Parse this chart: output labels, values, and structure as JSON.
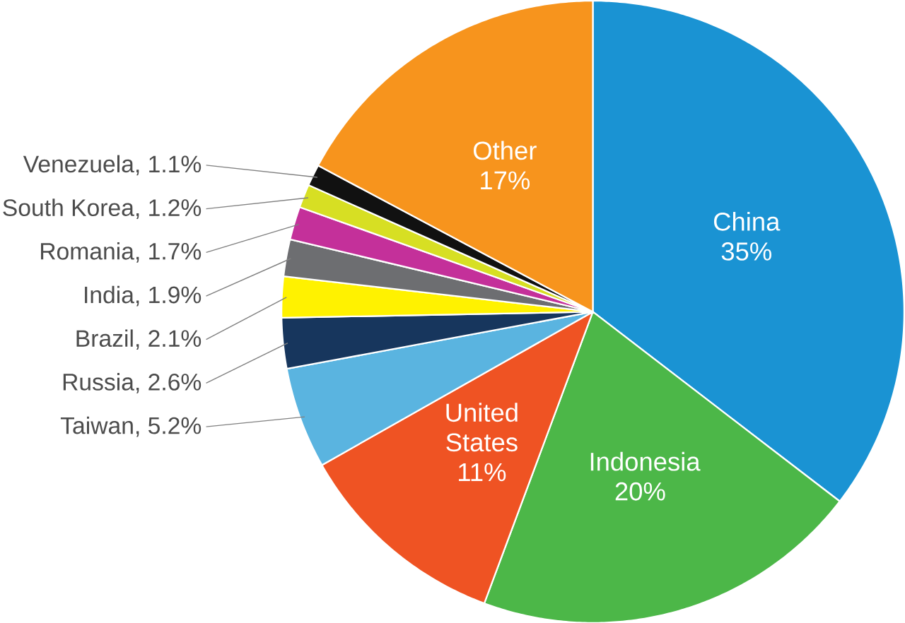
{
  "chart_data": {
    "type": "pie",
    "categories": [
      "China",
      "Indonesia",
      "United States",
      "Taiwan",
      "Russia",
      "Brazil",
      "India",
      "Romania",
      "South Korea",
      "Venezuela",
      "Other"
    ],
    "values": [
      35,
      20,
      11,
      5.2,
      2.6,
      2.1,
      1.9,
      1.7,
      1.2,
      1.1,
      17
    ],
    "colors": [
      "#1a93d3",
      "#4cb748",
      "#ef5323",
      "#5ab4e0",
      "#17365d",
      "#fff200",
      "#6d6e71",
      "#c4309a",
      "#d7df23",
      "#111111",
      "#f7941d"
    ],
    "value_labels": [
      "35%",
      "20%",
      "11%",
      ", 5.2%",
      ", 2.6%",
      ", 2.1%",
      ", 1.9%",
      ", 1.7%",
      ", 1.2%",
      ", 1.1%",
      "17%"
    ]
  }
}
